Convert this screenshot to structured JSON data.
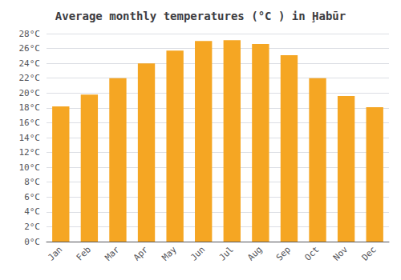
{
  "chart_data": {
    "type": "bar",
    "title": "Average monthly temperatures (°C ) in Ḩabūr",
    "categories": [
      "Jan",
      "Feb",
      "Mar",
      "Apr",
      "May",
      "Jun",
      "Jul",
      "Aug",
      "Sep",
      "Oct",
      "Nov",
      "Dec"
    ],
    "values": [
      18.2,
      19.8,
      22.0,
      24.0,
      25.7,
      27.0,
      27.1,
      26.6,
      25.1,
      22.0,
      19.6,
      18.1
    ],
    "color": "#F5A623",
    "ylim": [
      0,
      28
    ],
    "yticks": [
      {
        "value": 0,
        "label": "0°C"
      },
      {
        "value": 2,
        "label": "2°C"
      },
      {
        "value": 4,
        "label": "4°C"
      },
      {
        "value": 6,
        "label": "6°C"
      },
      {
        "value": 8,
        "label": "8°C"
      },
      {
        "value": 10,
        "label": "10°C"
      },
      {
        "value": 12,
        "label": "12°C"
      },
      {
        "value": 14,
        "label": "14°C"
      },
      {
        "value": 16,
        "label": "16°C"
      },
      {
        "value": 18,
        "label": "18°C"
      },
      {
        "value": 20,
        "label": "20°C"
      },
      {
        "value": 22,
        "label": "22°C"
      },
      {
        "value": 24,
        "label": "24°C"
      },
      {
        "value": 26,
        "label": "26°C"
      },
      {
        "value": 28,
        "label": "28°C"
      }
    ],
    "grid": true
  }
}
